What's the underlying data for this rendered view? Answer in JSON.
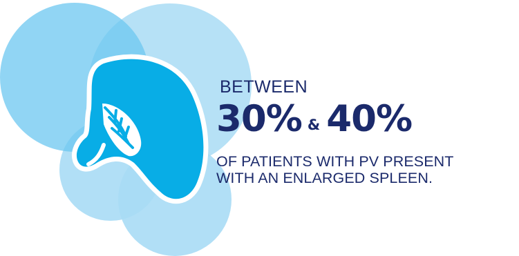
{
  "colors": {
    "circle_mid": "#6cc7f0",
    "circle_light": "#a9dcf5",
    "circle_dark": "#3eb6ec",
    "spleen_fill": "#08ade6",
    "text": "#1b2a6b"
  },
  "icons": {
    "spleen": "spleen-icon"
  },
  "heading": {
    "lead": "BETWEEN",
    "stat_low": "30%",
    "connector": "&",
    "stat_high": "40%"
  },
  "description": {
    "line1": "OF PATIENTS WITH PV PRESENT",
    "line2": "WITH AN ENLARGED SPLEEN."
  }
}
